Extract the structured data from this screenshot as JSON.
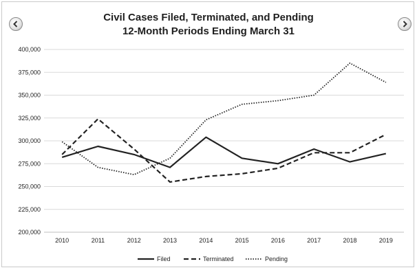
{
  "nav": {
    "prev_icon": "chevron-left-circle-icon",
    "next_icon": "chevron-right-circle-icon"
  },
  "chart_data": {
    "type": "line",
    "title": "Civil Cases Filed, Terminated, and Pending",
    "subtitle": "12-Month Periods Ending March 31",
    "xlabel": "",
    "ylabel": "",
    "x": [
      "2010",
      "2011",
      "2012",
      "2013",
      "2014",
      "2015",
      "2016",
      "2017",
      "2018",
      "2019"
    ],
    "ylim": [
      200000,
      400000
    ],
    "yticks": [
      200000,
      225000,
      250000,
      275000,
      300000,
      325000,
      350000,
      375000,
      400000
    ],
    "ytick_labels": [
      "200,000",
      "225,000",
      "250,000",
      "275,000",
      "300,000",
      "325,000",
      "350,000",
      "375,000",
      "400,000"
    ],
    "grid": "horizontal",
    "legend_position": "bottom",
    "series": [
      {
        "name": "Filed",
        "style": "solid",
        "color": "#222222",
        "values": [
          282000,
          294000,
          285000,
          271000,
          304000,
          281000,
          275000,
          291000,
          277000,
          286000
        ]
      },
      {
        "name": "Terminated",
        "style": "dashed",
        "color": "#222222",
        "values": [
          285000,
          324000,
          291000,
          255000,
          261000,
          264000,
          270000,
          287000,
          287000,
          307000
        ]
      },
      {
        "name": "Pending",
        "style": "dotted",
        "color": "#222222",
        "values": [
          299000,
          271000,
          263000,
          281000,
          323000,
          340000,
          344000,
          350000,
          385000,
          364000
        ]
      }
    ]
  }
}
